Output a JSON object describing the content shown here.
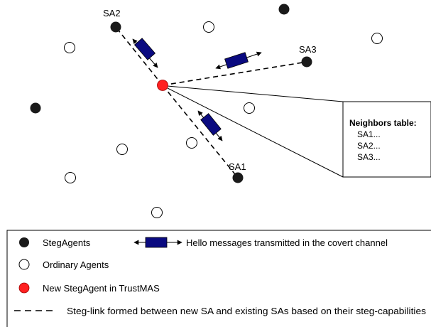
{
  "diagram": {
    "agent_labels": {
      "sa1": "SA1",
      "sa2": "SA2",
      "sa3": "SA3"
    },
    "neighbors_table": {
      "title": "Neighbors table:",
      "rows": [
        "SA1...",
        "SA2...",
        "SA3..."
      ]
    }
  },
  "legend": {
    "steg_agents": "StegAgents",
    "hello_messages": "Hello messages transmitted in the covert channel",
    "ordinary_agents": "Ordinary Agents",
    "new_steg_agent": "New StegAgent in TrustMAS",
    "steg_link": "Steg-link formed between new SA and existing SAs based on their steg-capabilities"
  },
  "colors": {
    "steg_agent": "#1a1a1a",
    "ordinary_agent": "#ffffff",
    "new_steg_agent": "#ff2020",
    "hello_message": "#0a0a80"
  }
}
